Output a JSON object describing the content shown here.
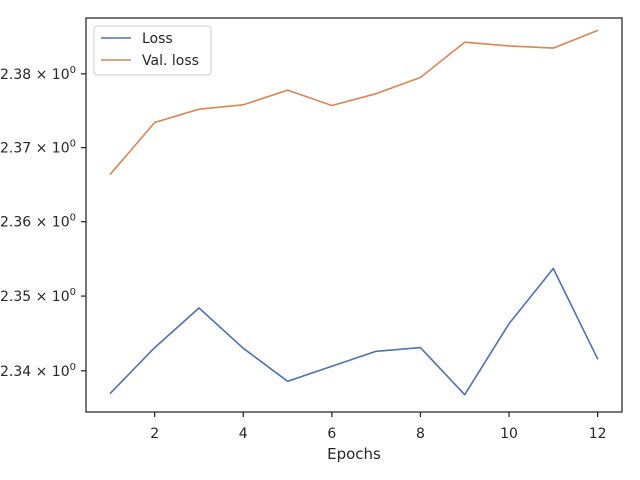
{
  "chart_data": {
    "type": "line",
    "title": "",
    "xlabel": "Epochs",
    "ylabel": "",
    "yscale": "log",
    "x": [
      1,
      2,
      3,
      4,
      5,
      6,
      7,
      8,
      9,
      10,
      11,
      12
    ],
    "xlim": [
      0.45,
      12.55
    ],
    "ylim": [
      2.3345,
      2.3876
    ],
    "xticks": [
      2,
      4,
      6,
      8,
      10,
      12
    ],
    "xtick_labels": [
      "2",
      "4",
      "6",
      "8",
      "10",
      "12"
    ],
    "yticks": [
      2.34,
      2.35,
      2.36,
      2.37,
      2.38
    ],
    "ytick_labels": [
      "2.34",
      "2.35",
      "2.36",
      "2.37",
      "2.38"
    ],
    "ytick_exponent": "0",
    "grid": false,
    "legend_position": "top-left",
    "series": [
      {
        "name": "Loss",
        "color": "#4c72b0",
        "values": [
          2.337,
          2.3431,
          2.3484,
          2.343,
          2.3386,
          2.3406,
          2.3426,
          2.3431,
          2.3368,
          2.3463,
          2.3537,
          2.3416
        ]
      },
      {
        "name": "Val. loss",
        "color": "#dd8452",
        "values": [
          2.3664,
          2.3734,
          2.3752,
          2.3758,
          2.3778,
          2.3757,
          2.3773,
          2.3795,
          2.3843,
          2.3838,
          2.3835,
          2.3859
        ]
      }
    ]
  }
}
